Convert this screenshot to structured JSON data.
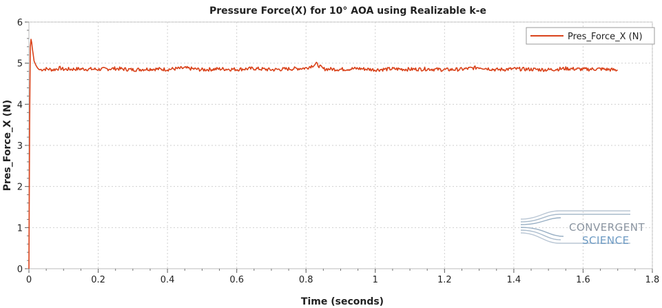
{
  "chart_data": {
    "type": "line",
    "title": "Pressure Force(X) for 10° AOA using Realizable k-e",
    "xlabel": "Time (seconds)",
    "ylabel": "Pres_Force_X (N)",
    "xlim": [
      0,
      1.8
    ],
    "ylim": [
      0,
      6
    ],
    "xticks": [
      0,
      0.2,
      0.4,
      0.6,
      0.8,
      1,
      1.2,
      1.4,
      1.6,
      1.8
    ],
    "xtick_labels": [
      "0",
      "0.2",
      "0.4",
      "0.6",
      "0.8",
      "1",
      "1.2",
      "1.4",
      "1.6",
      "1.8"
    ],
    "yticks": [
      0,
      1,
      2,
      3,
      4,
      5,
      6
    ],
    "ytick_labels": [
      "0",
      "1",
      "2",
      "3",
      "4",
      "5",
      "6"
    ],
    "grid": true,
    "legend_position": "top-right",
    "series": [
      {
        "name": "Pres_Force_X (N)",
        "color": "#d9421a",
        "x": [
          0,
          0.002,
          0.004,
          0.006,
          0.008,
          0.01,
          0.015,
          0.02,
          0.025,
          0.03,
          0.04,
          0.05,
          0.07,
          0.09,
          0.1,
          0.15,
          0.2,
          0.25,
          0.3,
          0.35,
          0.4,
          0.45,
          0.5,
          0.55,
          0.6,
          0.65,
          0.7,
          0.75,
          0.8,
          0.83,
          0.85,
          0.9,
          0.95,
          1.0,
          1.05,
          1.1,
          1.15,
          1.2,
          1.25,
          1.3,
          1.35,
          1.4,
          1.45,
          1.5,
          1.55,
          1.6,
          1.65,
          1.7
        ],
        "y": [
          0,
          3.5,
          5.4,
          5.58,
          5.5,
          5.35,
          5.05,
          4.95,
          4.88,
          4.84,
          4.85,
          4.86,
          4.84,
          4.88,
          4.85,
          4.86,
          4.85,
          4.87,
          4.84,
          4.86,
          4.85,
          4.88,
          4.84,
          4.86,
          4.85,
          4.87,
          4.84,
          4.86,
          4.88,
          4.98,
          4.86,
          4.85,
          4.87,
          4.84,
          4.86,
          4.85,
          4.86,
          4.84,
          4.85,
          4.9,
          4.84,
          4.86,
          4.85,
          4.84,
          4.87,
          4.85,
          4.86,
          4.83
        ]
      }
    ]
  },
  "logo": {
    "line1": "CONVERGENT",
    "line2": "SCIENCE"
  }
}
